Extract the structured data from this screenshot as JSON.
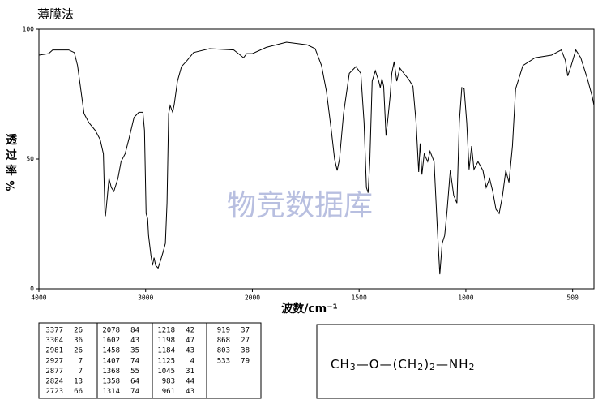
{
  "chart_data": {
    "type": "line",
    "title": "薄膜法",
    "watermark": "物竞数据库",
    "ylabel_chars": [
      "透",
      "过",
      "率",
      "%"
    ],
    "xlabel": "波数/cm⁻¹",
    "color": "#000000",
    "xlim": [
      4000,
      400
    ],
    "x_scale_break": 2000,
    "ylim": [
      0,
      100
    ],
    "xticks": [
      4000,
      3000,
      2000,
      1500,
      1000,
      500
    ],
    "yticks": [
      0,
      50,
      100
    ],
    "x": [
      4000,
      3909,
      3871,
      3721,
      3668,
      3638,
      3608,
      3577,
      3532,
      3472,
      3426,
      3396,
      3381,
      3377,
      3358,
      3343,
      3321,
      3298,
      3260,
      3230,
      3192,
      3155,
      3109,
      3064,
      3026,
      3011,
      2996,
      2981,
      2973,
      2951,
      2936,
      2921,
      2906,
      2883,
      2860,
      2838,
      2815,
      2800,
      2785,
      2770,
      2747,
      2732,
      2702,
      2664,
      2611,
      2551,
      2400,
      2174,
      2113,
      2083,
      2053,
      2000,
      1935,
      1840,
      1744,
      1706,
      1676,
      1653,
      1630,
      1615,
      1603,
      1592,
      1573,
      1546,
      1515,
      1492,
      1477,
      1466,
      1458,
      1450,
      1439,
      1424,
      1408,
      1401,
      1393,
      1385,
      1374,
      1366,
      1355,
      1347,
      1336,
      1324,
      1309,
      1286,
      1267,
      1248,
      1233,
      1221,
      1214,
      1206,
      1195,
      1179,
      1168,
      1149,
      1134,
      1122,
      1111,
      1099,
      1088,
      1073,
      1057,
      1042,
      1031,
      1019,
      1008,
      996,
      985,
      973,
      962,
      943,
      920,
      905,
      889,
      874,
      859,
      844,
      828,
      813,
      798,
      782,
      767,
      733,
      676,
      599,
      553,
      534,
      523,
      508,
      485,
      462,
      431,
      408,
      400
    ],
    "values": [
      90,
      90.6,
      92,
      92,
      91,
      86,
      77,
      67.5,
      64,
      61,
      57.5,
      52,
      29,
      28,
      36,
      42.5,
      39,
      37.5,
      42.5,
      49,
      52,
      58,
      66,
      68,
      68,
      61,
      29,
      27,
      20.6,
      13,
      9,
      12,
      9,
      8,
      11,
      14,
      17.5,
      33,
      67.5,
      70.6,
      68,
      71,
      80,
      85.6,
      88,
      91,
      92.5,
      92,
      90,
      89,
      90.6,
      90.6,
      93,
      95,
      94,
      92.5,
      86,
      76,
      61,
      50,
      45.6,
      50,
      67.5,
      83,
      85.6,
      83,
      64,
      39,
      37,
      49,
      80,
      84,
      80,
      77.5,
      81,
      78,
      59,
      65,
      74,
      83,
      87.5,
      80,
      85,
      82.5,
      80.6,
      78,
      64,
      45,
      56,
      44,
      52,
      49,
      53,
      49,
      24,
      5.6,
      17.5,
      20.6,
      30,
      45.6,
      36,
      33,
      64,
      77.5,
      77,
      64,
      46,
      55,
      46,
      49,
      45.6,
      39,
      42.5,
      37.5,
      30.6,
      29,
      36,
      45.6,
      41,
      55,
      77,
      86,
      89,
      90,
      92,
      88,
      82,
      85.6,
      92,
      89,
      81,
      74,
      70.6
    ],
    "peak_table": {
      "columns": [
        [
          [
            "3377",
            "26"
          ],
          [
            "3304",
            "36"
          ],
          [
            "2981",
            "26"
          ],
          [
            "2927",
            "7"
          ],
          [
            "2877",
            "7"
          ],
          [
            "2824",
            "13"
          ],
          [
            "2723",
            "66"
          ]
        ],
        [
          [
            "2078",
            "84"
          ],
          [
            "1602",
            "43"
          ],
          [
            "1458",
            "35"
          ],
          [
            "1407",
            "74"
          ],
          [
            "1368",
            "55"
          ],
          [
            "1358",
            "64"
          ],
          [
            "1314",
            "74"
          ]
        ],
        [
          [
            "1218",
            "42"
          ],
          [
            "1198",
            "47"
          ],
          [
            "1184",
            "43"
          ],
          [
            "1125",
            "4"
          ],
          [
            "1045",
            "31"
          ],
          [
            "983",
            "44"
          ],
          [
            "961",
            "43"
          ]
        ],
        [
          [
            "919",
            "37"
          ],
          [
            "868",
            "27"
          ],
          [
            "803",
            "38"
          ],
          [
            "533",
            "79"
          ]
        ]
      ]
    },
    "structure": {
      "parts": [
        "CH",
        "3",
        "—O—(CH",
        "2",
        ")",
        "2",
        "—NH",
        "2"
      ]
    }
  }
}
